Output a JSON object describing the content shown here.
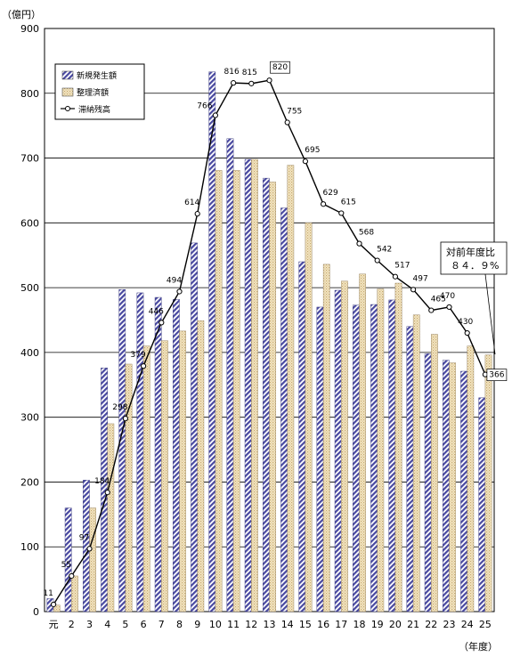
{
  "chart_data": {
    "type": "bar",
    "y_unit": "（億円）",
    "x_unit": "（年度）",
    "ylim": [
      0,
      900
    ],
    "y_ticks": [
      0,
      100,
      200,
      300,
      400,
      500,
      600,
      700,
      800,
      900
    ],
    "grid": true,
    "legend_position": "top-left",
    "categories": [
      "元",
      "2",
      "3",
      "4",
      "5",
      "6",
      "7",
      "8",
      "9",
      "10",
      "11",
      "12",
      "13",
      "14",
      "15",
      "16",
      "17",
      "18",
      "19",
      "20",
      "21",
      "22",
      "23",
      "24",
      "25"
    ],
    "series": [
      {
        "name": "新規発生額",
        "type": "bar",
        "color": "#5a5aa8",
        "values": [
          20,
          160,
          203,
          376,
          497,
          492,
          485,
          482,
          569,
          833,
          730,
          698,
          669,
          623,
          540,
          470,
          496,
          473,
          474,
          481,
          440,
          398,
          388,
          371,
          330
        ]
      },
      {
        "name": "整理済額",
        "type": "bar",
        "color": "#e8d8a8",
        "values": [
          10,
          55,
          160,
          290,
          382,
          410,
          418,
          433,
          449,
          681,
          681,
          698,
          663,
          689,
          600,
          536,
          510,
          521,
          498,
          507,
          458,
          428,
          384,
          410,
          396
        ]
      },
      {
        "name": "滞納残高",
        "type": "line",
        "color": "#000000",
        "values": [
          11,
          55,
          97,
          184,
          298,
          379,
          446,
          494,
          614,
          766,
          816,
          815,
          820,
          755,
          695,
          629,
          615,
          568,
          542,
          517,
          497,
          465,
          470,
          430,
          366
        ]
      }
    ],
    "annotation": {
      "line1": "対前年度比",
      "line2": "８４．９%"
    }
  }
}
